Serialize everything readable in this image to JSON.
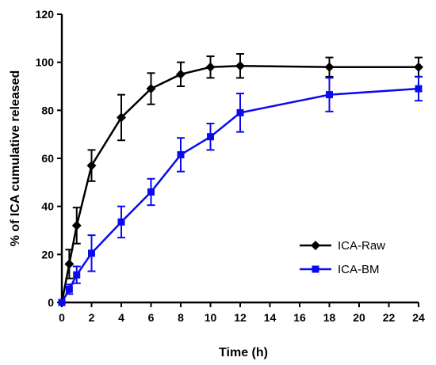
{
  "chart_data": {
    "type": "line",
    "title": "",
    "xlabel": "Time (h)",
    "ylabel": "% of ICA cumulative released",
    "xlim": [
      0,
      24
    ],
    "ylim": [
      0,
      120
    ],
    "xticks": [
      0,
      2,
      4,
      6,
      8,
      10,
      12,
      14,
      16,
      18,
      20,
      22,
      24
    ],
    "yticks": [
      0,
      20,
      40,
      60,
      80,
      100,
      120
    ],
    "grid": false,
    "legend_position": "right-lower",
    "series": [
      {
        "name": "ICA-Raw",
        "color": "#000000",
        "marker": "diamond",
        "x": [
          0,
          0.5,
          1,
          2,
          4,
          6,
          8,
          10,
          12,
          18,
          24
        ],
        "y": [
          0,
          16,
          32,
          57,
          77,
          89,
          95,
          98,
          98.5,
          98,
          98
        ],
        "err": [
          0,
          6,
          7.5,
          6.5,
          9.5,
          6.5,
          5,
          4.5,
          5,
          4,
          4
        ]
      },
      {
        "name": "ICA-BM",
        "color": "#0a0af0",
        "marker": "square",
        "x": [
          0,
          0.5,
          1,
          2,
          4,
          6,
          8,
          10,
          12,
          18,
          24
        ],
        "y": [
          0,
          5.5,
          11.5,
          20.5,
          33.5,
          46,
          61.5,
          69,
          79,
          86.5,
          89
        ],
        "err": [
          0,
          2,
          3.5,
          7.5,
          6.5,
          5.5,
          7,
          5.5,
          8,
          7,
          5
        ]
      }
    ]
  }
}
